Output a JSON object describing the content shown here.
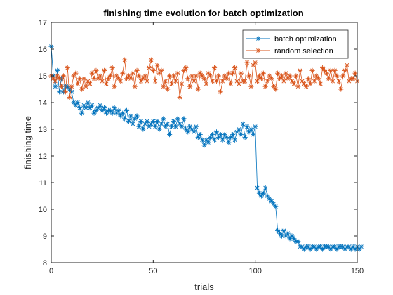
{
  "chart_data": {
    "type": "line",
    "title": "finishing time evolution for batch optimization",
    "xlabel": "trials",
    "ylabel": "finishing time",
    "xlim": [
      0,
      150
    ],
    "ylim": [
      8,
      17
    ],
    "xticks": [
      0,
      50,
      100,
      150
    ],
    "yticks": [
      8,
      9,
      10,
      11,
      12,
      13,
      14,
      15,
      16,
      17
    ],
    "grid": false,
    "legend_position": "top-right",
    "marker": "asterisk",
    "series": [
      {
        "name": "batch optimization",
        "color": "#0072BD",
        "values": [
          16.1,
          15.0,
          14.6,
          15.2,
          14.4,
          14.9,
          14.4,
          14.6,
          14.6,
          14.5,
          14.4,
          14.0,
          13.9,
          14.0,
          13.8,
          13.6,
          13.9,
          13.8,
          14.0,
          13.8,
          13.9,
          13.6,
          13.7,
          13.8,
          13.9,
          13.7,
          13.8,
          13.6,
          13.7,
          13.7,
          13.6,
          13.8,
          13.6,
          13.7,
          13.5,
          13.6,
          13.4,
          13.7,
          13.3,
          13.5,
          13.2,
          13.4,
          13.5,
          13.1,
          13.3,
          13.0,
          13.2,
          13.3,
          13.1,
          13.2,
          13.3,
          13.1,
          13.3,
          13.0,
          13.2,
          13.4,
          13.1,
          13.2,
          12.8,
          13.1,
          13.3,
          13.1,
          13.4,
          13.2,
          13.1,
          13.4,
          13.0,
          12.9,
          13.1,
          13.0,
          12.9,
          13.1,
          12.7,
          12.8,
          12.6,
          12.4,
          12.6,
          12.5,
          12.7,
          12.8,
          12.6,
          12.9,
          12.7,
          12.8,
          12.6,
          12.8,
          12.7,
          12.5,
          12.7,
          12.8,
          12.6,
          12.9,
          13.0,
          12.8,
          13.2,
          12.7,
          13.1,
          12.9,
          13.0,
          12.8,
          13.1,
          10.8,
          10.6,
          10.5,
          10.6,
          10.8,
          10.5,
          10.4,
          10.3,
          10.2,
          10.1,
          9.2,
          9.1,
          9.0,
          9.2,
          9.0,
          9.1,
          8.9,
          9.0,
          8.9,
          8.8,
          8.8,
          8.6,
          8.6,
          8.5,
          8.6,
          8.6,
          8.5,
          8.6,
          8.6,
          8.5,
          8.6,
          8.6,
          8.5,
          8.6,
          8.6,
          8.6,
          8.5,
          8.6,
          8.6,
          8.5,
          8.6,
          8.6,
          8.6,
          8.5,
          8.6,
          8.6,
          8.5,
          8.6,
          8.5,
          8.6,
          8.5,
          8.6
        ]
      },
      {
        "name": "random selection",
        "color": "#D95319",
        "values": [
          15.0,
          14.9,
          14.8,
          15.0,
          14.9,
          14.6,
          15.0,
          14.4,
          15.3,
          14.2,
          14.6,
          15.0,
          15.1,
          14.7,
          14.9,
          14.5,
          14.9,
          14.6,
          14.8,
          14.7,
          15.1,
          14.9,
          15.2,
          14.9,
          15.0,
          14.8,
          15.2,
          14.7,
          14.9,
          15.0,
          15.3,
          14.6,
          15.0,
          14.9,
          14.8,
          15.1,
          15.6,
          14.9,
          15.0,
          14.9,
          15.1,
          14.6,
          15.2,
          15.0,
          14.8,
          14.9,
          15.0,
          14.8,
          15.3,
          15.6,
          15.2,
          14.8,
          15.4,
          15.1,
          15.2,
          14.6,
          14.8,
          14.5,
          15.0,
          14.7,
          15.0,
          14.8,
          15.1,
          14.2,
          14.7,
          15.2,
          15.3,
          14.9,
          14.6,
          15.0,
          14.8,
          15.0,
          14.5,
          15.1,
          15.0,
          14.9,
          14.7,
          15.1,
          15.0,
          14.8,
          15.3,
          14.8,
          15.0,
          14.4,
          14.8,
          15.0,
          14.9,
          15.1,
          14.7,
          15.1,
          15.3,
          14.8,
          14.7,
          15.1,
          14.8,
          14.8,
          15.5,
          15.0,
          14.6,
          15.4,
          15.5,
          14.8,
          15.0,
          14.9,
          15.1,
          14.6,
          14.8,
          15.0,
          14.9,
          14.6,
          14.5,
          15.1,
          14.9,
          15.0,
          14.8,
          15.1,
          14.9,
          15.0,
          14.8,
          14.7,
          15.0,
          14.6,
          15.2,
          14.8,
          14.7,
          14.6,
          14.9,
          14.7,
          15.2,
          14.8,
          15.0,
          14.9,
          14.7,
          15.3,
          15.2,
          15.1,
          14.9,
          15.2,
          14.8,
          15.2,
          15.0,
          14.8,
          14.5,
          15.0,
          15.2,
          15.4,
          14.8,
          14.9,
          14.9,
          15.1,
          14.8
        ]
      }
    ]
  }
}
